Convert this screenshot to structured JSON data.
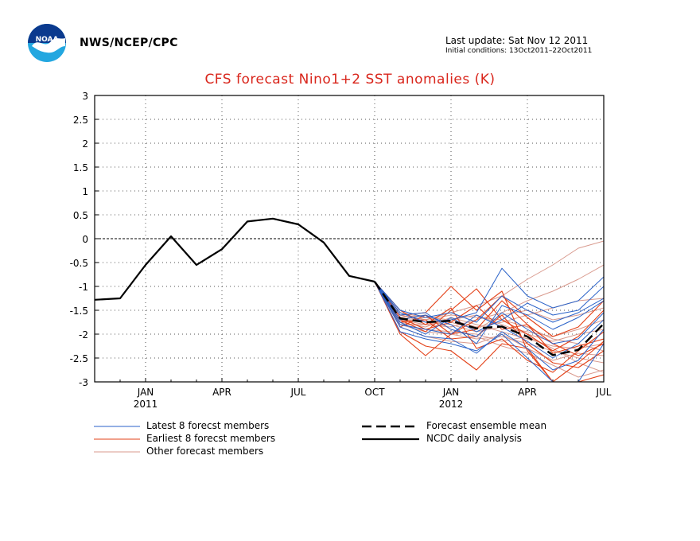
{
  "header": {
    "org": "NWS/NCEP/CPC",
    "last_update": "Last update: Sat Nov 12 2011",
    "initial_conditions": "Initial conditions: 13Oct2011–22Oct2011"
  },
  "logo": {
    "icon": "noaa-logo-icon",
    "text": "NOAA"
  },
  "chart_data": {
    "type": "line",
    "title": "CFS forecast Nino1+2 SST anomalies (K)",
    "ylim": [
      -3,
      3
    ],
    "yticks": [
      "3",
      "2.5",
      "2",
      "1.5",
      "1",
      "0.5",
      "0",
      "-0.5",
      "-1",
      "-1.5",
      "-2",
      "-2.5",
      "-3"
    ],
    "ytick_values": [
      3,
      2.5,
      2,
      1.5,
      1,
      0.5,
      0,
      -0.5,
      -1,
      -1.5,
      -2,
      -2.5,
      -3
    ],
    "xlim": [
      "2010-11",
      "2012-07"
    ],
    "xticks": [
      {
        "label": "JAN",
        "sub": "2011",
        "x": "2011-01"
      },
      {
        "label": "APR",
        "sub": "",
        "x": "2011-04"
      },
      {
        "label": "JUL",
        "sub": "",
        "x": "2011-07"
      },
      {
        "label": "OCT",
        "sub": "",
        "x": "2011-10"
      },
      {
        "label": "JAN",
        "sub": "2012",
        "x": "2012-01"
      },
      {
        "label": "APR",
        "sub": "",
        "x": "2012-04"
      },
      {
        "label": "JUL",
        "sub": "",
        "x": "2012-07"
      }
    ],
    "grid": true,
    "zero_line": true,
    "colors": {
      "latest": "#2a62c8",
      "earliest": "#e34017",
      "other": "#d99a8e",
      "analysis": "#000000"
    },
    "legend": {
      "placement": "bottom",
      "items": [
        {
          "label": "Latest 8 forecst members",
          "style": "latest"
        },
        {
          "label": "Earliest 8 forecst members",
          "style": "earliest"
        },
        {
          "label": "Other forecast members",
          "style": "other"
        },
        {
          "label": "Forecast ensemble mean",
          "style": "mean"
        },
        {
          "label": "NCDC daily analysis",
          "style": "analysis"
        }
      ]
    },
    "months": [
      "2011-10",
      "2011-11",
      "2011-12",
      "2012-01",
      "2012-02",
      "2012-03",
      "2012-04",
      "2012-05",
      "2012-06",
      "2012-07"
    ],
    "series": [
      {
        "role": "analysis",
        "x": [
          "2010-11",
          "2010-12",
          "2011-01",
          "2011-02",
          "2011-03",
          "2011-04",
          "2011-05",
          "2011-06",
          "2011-07",
          "2011-08",
          "2011-09",
          "2011-10"
        ],
        "values": [
          -1.28,
          -1.25,
          -0.55,
          0.05,
          -0.55,
          -0.22,
          0.36,
          0.42,
          0.3,
          -0.08,
          -0.78,
          -0.9
        ]
      },
      {
        "role": "mean",
        "x": [
          "2011-10",
          "2011-11",
          "2011-12",
          "2012-01",
          "2012-02",
          "2012-03",
          "2012-04",
          "2012-05",
          "2012-06",
          "2012-07"
        ],
        "values": [
          -0.9,
          -1.67,
          -1.75,
          -1.72,
          -1.88,
          -1.84,
          -2.05,
          -2.44,
          -2.33,
          -1.78
        ]
      },
      {
        "role": "latest",
        "values": [
          -0.9,
          -1.55,
          -1.75,
          -1.7,
          -1.55,
          -0.62,
          -1.2,
          -1.45,
          -1.3,
          -0.8
        ]
      },
      {
        "role": "latest",
        "values": [
          -0.9,
          -1.85,
          -2.05,
          -2.1,
          -2.4,
          -1.95,
          -2.3,
          -2.75,
          -2.55,
          -1.9
        ]
      },
      {
        "role": "latest",
        "values": [
          -0.9,
          -1.7,
          -1.6,
          -1.8,
          -2.2,
          -1.4,
          -1.6,
          -1.9,
          -1.65,
          -1.3
        ]
      },
      {
        "role": "latest",
        "values": [
          -0.9,
          -1.95,
          -2.1,
          -2.2,
          -2.35,
          -2.0,
          -2.5,
          -3.0,
          -3.0,
          -2.2
        ]
      },
      {
        "role": "latest",
        "values": [
          -0.9,
          -1.5,
          -1.65,
          -1.55,
          -1.75,
          -1.2,
          -1.5,
          -1.75,
          -1.55,
          -1.25
        ]
      },
      {
        "role": "latest",
        "values": [
          -0.9,
          -1.8,
          -1.9,
          -2.0,
          -1.6,
          -1.85,
          -2.15,
          -2.5,
          -2.2,
          -1.7
        ]
      },
      {
        "role": "latest",
        "values": [
          -0.9,
          -1.6,
          -1.55,
          -1.9,
          -2.05,
          -1.55,
          -1.9,
          -2.2,
          -2.1,
          -1.55
        ]
      },
      {
        "role": "latest",
        "values": [
          -0.9,
          -1.75,
          -2.0,
          -1.65,
          -1.95,
          -1.7,
          -1.35,
          -1.6,
          -1.5,
          -1.0
        ]
      },
      {
        "role": "earliest",
        "values": [
          -0.9,
          -1.6,
          -1.55,
          -1.0,
          -1.5,
          -1.1,
          -2.35,
          -3.0,
          -2.6,
          -2.15
        ]
      },
      {
        "role": "earliest",
        "values": [
          -0.9,
          -1.95,
          -2.25,
          -2.35,
          -2.75,
          -2.2,
          -2.3,
          -3.0,
          -3.0,
          -2.85
        ]
      },
      {
        "role": "earliest",
        "values": [
          -0.9,
          -1.7,
          -1.95,
          -1.5,
          -1.05,
          -1.7,
          -2.0,
          -2.35,
          -2.05,
          -1.5
        ]
      },
      {
        "role": "earliest",
        "values": [
          -0.9,
          -1.85,
          -1.6,
          -2.0,
          -1.9,
          -1.3,
          -1.8,
          -2.2,
          -2.45,
          -2.2
        ]
      },
      {
        "role": "earliest",
        "values": [
          -0.9,
          -1.5,
          -1.8,
          -1.45,
          -2.3,
          -2.1,
          -2.55,
          -2.8,
          -2.35,
          -1.95
        ]
      },
      {
        "role": "earliest",
        "values": [
          -0.9,
          -2.0,
          -2.45,
          -2.0,
          -1.7,
          -1.2,
          -1.65,
          -2.05,
          -1.85,
          -1.3
        ]
      },
      {
        "role": "earliest",
        "values": [
          -0.9,
          -1.75,
          -1.7,
          -2.1,
          -2.05,
          -1.6,
          -2.2,
          -2.6,
          -2.7,
          -2.35
        ]
      },
      {
        "role": "earliest",
        "values": [
          -0.9,
          -1.65,
          -1.9,
          -1.75,
          -1.4,
          -1.9,
          -1.8,
          -2.4,
          -2.25,
          -2.1
        ]
      },
      {
        "role": "other",
        "values": [
          -0.9,
          -1.6,
          -1.7,
          -1.55,
          -1.4,
          -1.2,
          -0.85,
          -0.55,
          -0.2,
          -0.05
        ]
      },
      {
        "role": "other",
        "values": [
          -0.9,
          -1.7,
          -1.8,
          -1.85,
          -1.7,
          -1.55,
          -1.3,
          -1.1,
          -0.85,
          -0.55
        ]
      },
      {
        "role": "other",
        "values": [
          -0.9,
          -1.55,
          -1.65,
          -1.7,
          -1.85,
          -1.75,
          -1.6,
          -1.45,
          -1.3,
          -1.25
        ]
      },
      {
        "role": "other",
        "values": [
          -0.9,
          -1.8,
          -1.95,
          -2.0,
          -2.1,
          -2.05,
          -2.2,
          -2.35,
          -2.5,
          -2.6
        ]
      },
      {
        "role": "other",
        "values": [
          -0.9,
          -1.65,
          -1.6,
          -1.9,
          -2.05,
          -2.25,
          -2.4,
          -2.65,
          -2.9,
          -2.75
        ]
      },
      {
        "role": "other",
        "values": [
          -0.9,
          -1.75,
          -1.85,
          -1.65,
          -1.8,
          -1.95,
          -2.1,
          -2.25,
          -2.3,
          -2.2
        ]
      },
      {
        "role": "other",
        "values": [
          -0.9,
          -1.6,
          -1.75,
          -1.8,
          -1.95,
          -1.85,
          -1.95,
          -2.05,
          -1.9,
          -1.7
        ]
      },
      {
        "role": "other",
        "values": [
          -0.9,
          -1.85,
          -2.05,
          -2.15,
          -2.2,
          -2.0,
          -2.3,
          -2.55,
          -2.4,
          -2.45
        ]
      },
      {
        "role": "other",
        "values": [
          -0.9,
          -1.7,
          -1.7,
          -1.6,
          -1.65,
          -1.7,
          -1.85,
          -2.1,
          -2.2,
          -2.35
        ]
      },
      {
        "role": "other",
        "values": [
          -0.9,
          -1.65,
          -1.9,
          -1.95,
          -2.0,
          -2.15,
          -2.05,
          -2.3,
          -2.6,
          -2.8
        ]
      },
      {
        "role": "other",
        "values": [
          -0.9,
          -1.75,
          -1.65,
          -1.75,
          -1.9,
          -1.6,
          -1.5,
          -1.7,
          -1.6,
          -1.45
        ]
      },
      {
        "role": "other",
        "values": [
          -0.9,
          -1.8,
          -1.8,
          -1.7,
          -1.6,
          -1.8,
          -2.0,
          -2.15,
          -2.0,
          -1.9
        ]
      }
    ]
  }
}
